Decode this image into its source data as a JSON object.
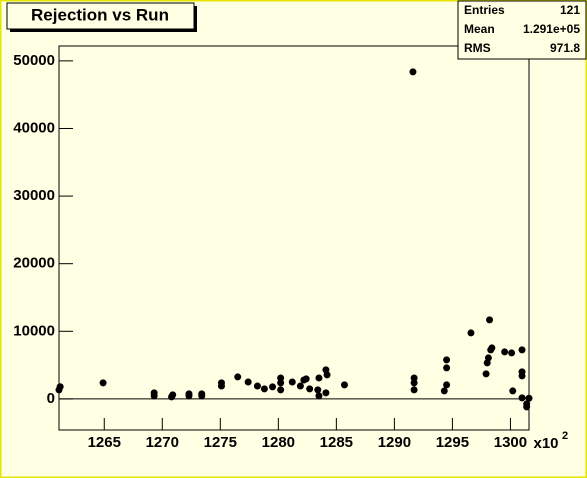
{
  "chart_data": {
    "type": "scatter",
    "title": "Rejection vs Run",
    "stats": {
      "labels": [
        "Entries",
        "Mean",
        "RMS"
      ],
      "values": [
        "121",
        "1.291e+05",
        "971.8"
      ]
    },
    "x_multiplier": "x10",
    "x_multiplier_exp": "2",
    "color": "#000000",
    "x": [
      1261.1,
      1261.2,
      1264.9,
      1269.3,
      1269.3,
      1270.8,
      1270.9,
      1272.3,
      1272.3,
      1273.4,
      1273.4,
      1275.1,
      1275.1,
      1276.5,
      1277.4,
      1278.2,
      1278.8,
      1279.5,
      1280.2,
      1280.2,
      1280.2,
      1281.2,
      1281.9,
      1282.2,
      1282.4,
      1282.7,
      1283.4,
      1283.5,
      1283.5,
      1284.1,
      1284.2,
      1284.1,
      1285.7,
      1291.7,
      1291.7,
      1291.7,
      1291.6,
      1294.5,
      1294.5,
      1294.5,
      1294.3,
      1296.6,
      1297.9,
      1298.0,
      1298.1,
      1298.2,
      1298.3,
      1298.4,
      1299.5,
      1300.1,
      1300.2,
      1301.0,
      1301.0,
      1301.0,
      1301.0,
      1301.4,
      1301.4,
      1301.6
    ],
    "values": [
      1330,
      1800,
      2370,
      900,
      450,
      300,
      600,
      740,
      450,
      740,
      450,
      2370,
      1900,
      3250,
      2500,
      1900,
      1480,
      1780,
      3100,
      2370,
      1330,
      2500,
      1900,
      2800,
      2960,
      1480,
      1330,
      3100,
      450,
      4300,
      3550,
      900,
      2070,
      3100,
      2370,
      1330,
      48370,
      5770,
      4590,
      2070,
      1180,
      9760,
      3700,
      5330,
      6060,
      11690,
      7250,
      7540,
      6950,
      6800,
      1180,
      7250,
      4000,
      3400,
      150,
      -740,
      -1180,
      100
    ],
    "xlim": [
      1261.1,
      1301.6
    ],
    "ylim": [
      -4600,
      52200
    ],
    "xticks": [
      1265,
      1270,
      1275,
      1280,
      1285,
      1290,
      1295,
      1300
    ],
    "yticks": [
      0,
      10000,
      20000,
      30000,
      40000,
      50000
    ]
  }
}
